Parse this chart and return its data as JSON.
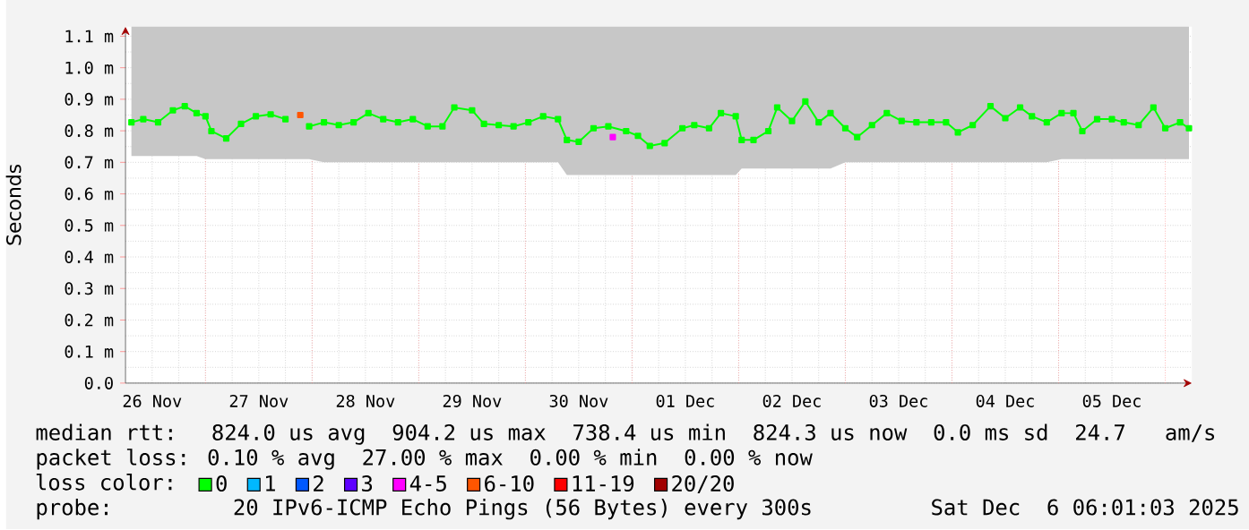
{
  "chart_data": {
    "type": "line",
    "ylabel": "Seconds",
    "legend_title": "loss color:",
    "legend": "bottom",
    "grid": true,
    "marker": "square",
    "line_style": "solid",
    "xlim": [
      "2025-11-26T06:00",
      "2025-12-06T06:00"
    ],
    "ylim": [
      0,
      1.13
    ],
    "xticks": [
      {
        "value": "2025-11-26T12:00",
        "label": "26 Nov"
      },
      {
        "value": "2025-11-27T12:00",
        "label": "27 Nov"
      },
      {
        "value": "2025-11-28T12:00",
        "label": "28 Nov"
      },
      {
        "value": "2025-11-29T12:00",
        "label": "29 Nov"
      },
      {
        "value": "2025-11-30T12:00",
        "label": "30 Nov"
      },
      {
        "value": "2025-12-01T12:00",
        "label": "01 Dec"
      },
      {
        "value": "2025-12-02T12:00",
        "label": "02 Dec"
      },
      {
        "value": "2025-12-03T12:00",
        "label": "03 Dec"
      },
      {
        "value": "2025-12-04T12:00",
        "label": "04 Dec"
      },
      {
        "value": "2025-12-05T12:00",
        "label": "05 Dec"
      },
      {
        "value": "2025-11-27T00:00",
        "label": null
      },
      {
        "value": "2025-11-28T00:00",
        "label": null
      },
      {
        "value": "2025-11-29T00:00",
        "label": null
      },
      {
        "value": "2025-11-30T00:00",
        "label": null
      },
      {
        "value": "2025-12-01T00:00",
        "label": null
      },
      {
        "value": "2025-12-02T00:00",
        "label": null
      },
      {
        "value": "2025-12-03T00:00",
        "label": null
      },
      {
        "value": "2025-12-04T00:00",
        "label": null
      },
      {
        "value": "2025-12-05T00:00",
        "label": null
      },
      {
        "value": "2025-12-06T00:00",
        "label": null
      }
    ],
    "yticks": [
      {
        "value": 0,
        "label": "0.0"
      },
      {
        "value": 0.1,
        "label": "0.1 m"
      },
      {
        "value": 0.2,
        "label": "0.2 m"
      },
      {
        "value": 0.3,
        "label": "0.3 m"
      },
      {
        "value": 0.4,
        "label": "0.4 m"
      },
      {
        "value": 0.5,
        "label": "0.5 m"
      },
      {
        "value": 0.6,
        "label": "0.6 m"
      },
      {
        "value": 0.7,
        "label": "0.7 m"
      },
      {
        "value": 0.8,
        "label": "0.8 m"
      },
      {
        "value": 0.9,
        "label": "0.9 m"
      },
      {
        "value": 1.0,
        "label": "1.0 m"
      },
      {
        "value": 1.1,
        "label": "1.1 m"
      }
    ],
    "annotations": [
      "median rtt:  824.0 us avg  904.2 us max  738.4 us min  824.3 us now  0.0 ms sd  24.7   am/s",
      "packet loss: 0.10 % avg  27.00 % max  0.00 % min  0.00 % now",
      "probe:       20 IPv6-ICMP Echo Pings (56 Bytes) every 300s",
      "Sat Dec  6 06:01:03 2025"
    ],
    "series": [
      {
        "name": "0",
        "color": "#00ff00",
        "x": [
          "2025-11-26T07:20",
          "2025-11-26T10:00",
          "2025-11-26T13:20",
          "2025-11-26T16:40",
          "2025-11-26T19:20",
          "2025-11-26T22:00",
          "2025-11-27T00:00",
          "2025-11-27T01:20",
          "2025-11-27T04:40",
          "2025-11-27T08:00",
          "2025-11-27T11:20",
          "2025-11-27T14:40",
          "2025-11-27T18:00",
          "2025-11-27T21:20",
          "2025-11-27T23:20",
          "2025-11-28T02:40",
          "2025-11-28T06:00",
          "2025-11-28T09:20",
          "2025-11-28T12:40",
          "2025-11-28T16:00",
          "2025-11-28T19:20",
          "2025-11-28T22:40",
          "2025-11-29T02:00",
          "2025-11-29T05:20",
          "2025-11-29T08:00",
          "2025-11-29T12:00",
          "2025-11-29T14:40",
          "2025-11-29T18:00",
          "2025-11-29T21:20",
          "2025-11-30T00:40",
          "2025-11-30T04:00",
          "2025-11-30T07:20",
          "2025-11-30T09:20",
          "2025-11-30T12:00",
          "2025-11-30T15:20",
          "2025-11-30T18:40",
          "2025-11-30T22:40",
          "2025-12-01T01:20",
          "2025-12-01T04:00",
          "2025-12-01T07:20",
          "2025-12-01T11:20",
          "2025-12-01T14:00",
          "2025-12-01T17:20",
          "2025-12-01T20:00",
          "2025-12-01T23:20",
          "2025-12-02T00:40",
          "2025-12-02T03:20",
          "2025-12-02T06:40",
          "2025-12-02T08:40",
          "2025-12-02T12:00",
          "2025-12-02T15:00",
          "2025-12-02T18:00",
          "2025-12-02T20:40",
          "2025-12-03T00:00",
          "2025-12-03T02:40",
          "2025-12-03T06:00",
          "2025-12-03T09:20",
          "2025-12-03T12:40",
          "2025-12-03T16:00",
          "2025-12-03T19:20",
          "2025-12-03T22:40",
          "2025-12-04T01:20",
          "2025-12-04T04:40",
          "2025-12-04T08:40",
          "2025-12-04T12:00",
          "2025-12-04T15:20",
          "2025-12-04T18:00",
          "2025-12-04T21:20",
          "2025-12-05T00:40",
          "2025-12-05T03:20",
          "2025-12-05T05:20",
          "2025-12-05T08:40",
          "2025-12-05T12:00",
          "2025-12-05T14:40",
          "2025-12-05T18:00",
          "2025-12-05T21:20",
          "2025-12-06T00:00",
          "2025-12-06T03:20",
          "2025-12-06T05:20"
        ],
        "values": [
          0.827,
          0.837,
          0.827,
          0.865,
          0.878,
          0.856,
          0.846,
          0.799,
          0.776,
          0.822,
          0.846,
          0.852,
          0.837,
          null,
          0.814,
          0.827,
          0.818,
          0.827,
          0.856,
          0.837,
          0.827,
          0.837,
          0.814,
          0.814,
          0.874,
          0.865,
          0.822,
          0.818,
          0.814,
          0.827,
          0.846,
          0.837,
          0.771,
          0.765,
          0.808,
          0.814,
          0.799,
          0.784,
          0.752,
          0.761,
          0.808,
          0.818,
          0.808,
          0.856,
          0.846,
          0.771,
          0.771,
          0.799,
          0.874,
          0.831,
          0.893,
          0.827,
          0.856,
          0.808,
          0.78,
          0.818,
          0.856,
          0.831,
          0.827,
          0.827,
          0.827,
          0.795,
          0.818,
          0.878,
          0.84,
          0.874,
          0.846,
          0.827,
          0.856,
          0.856,
          0.799,
          0.837,
          0.837,
          0.827,
          0.818,
          0.874,
          0.808,
          0.827,
          0.808
        ],
        "lower": [
          0.72,
          0.72,
          0.72,
          0.72,
          0.72,
          0.72,
          0.71,
          0.71,
          0.71,
          0.71,
          0.71,
          0.71,
          0.71,
          0.71,
          0.71,
          0.7,
          0.7,
          0.7,
          0.7,
          0.7,
          0.7,
          0.7,
          0.7,
          0.7,
          0.7,
          0.7,
          0.7,
          0.7,
          0.7,
          0.7,
          0.7,
          0.7,
          0.66,
          0.66,
          0.66,
          0.66,
          0.66,
          0.66,
          0.66,
          0.66,
          0.66,
          0.66,
          0.66,
          0.66,
          0.66,
          0.68,
          0.68,
          0.68,
          0.68,
          0.68,
          0.68,
          0.68,
          0.68,
          0.7,
          0.7,
          0.7,
          0.7,
          0.7,
          0.7,
          0.7,
          0.7,
          0.7,
          0.7,
          0.7,
          0.7,
          0.7,
          0.7,
          0.7,
          0.71,
          0.71,
          0.71,
          0.71,
          0.71,
          0.71,
          0.71,
          0.71,
          0.71,
          0.71,
          0.71
        ],
        "upper": [
          1.13,
          1.13,
          1.13,
          1.13,
          1.13,
          1.13,
          1.13,
          1.13,
          1.13,
          1.13,
          1.13,
          1.13,
          1.13,
          1.13,
          1.13,
          1.13,
          1.13,
          1.13,
          1.13,
          1.13,
          1.13,
          1.13,
          1.13,
          1.13,
          1.13,
          1.13,
          1.13,
          1.13,
          1.13,
          1.13,
          1.13,
          1.13,
          1.13,
          1.13,
          1.13,
          1.13,
          1.13,
          1.13,
          1.13,
          1.13,
          1.13,
          1.13,
          1.13,
          1.13,
          1.13,
          1.13,
          1.13,
          1.13,
          1.13,
          1.13,
          1.13,
          1.13,
          1.13,
          1.13,
          1.13,
          1.13,
          1.13,
          1.13,
          1.13,
          1.13,
          1.13,
          1.13,
          1.13,
          1.13,
          1.13,
          1.13,
          1.13,
          1.13,
          1.13,
          1.13,
          1.13,
          1.13,
          1.13,
          1.13,
          1.13,
          1.13,
          1.13,
          1.13,
          1.13
        ]
      },
      {
        "name": "1",
        "color": "#00b8ff"
      },
      {
        "name": "2",
        "color": "#0059ff"
      },
      {
        "name": "3",
        "color": "#5e00ff"
      },
      {
        "name": "4-5",
        "color": "#ff00ff",
        "x": [
          "2025-11-30T19:40"
        ],
        "values": [
          0.78
        ]
      },
      {
        "name": "6-10",
        "color": "#ff5500",
        "x": [
          "2025-11-27T21:20"
        ],
        "values": [
          0.85
        ]
      },
      {
        "name": "11-19",
        "color": "#ff0000"
      },
      {
        "name": "20/20",
        "color": "#a10000"
      }
    ]
  }
}
